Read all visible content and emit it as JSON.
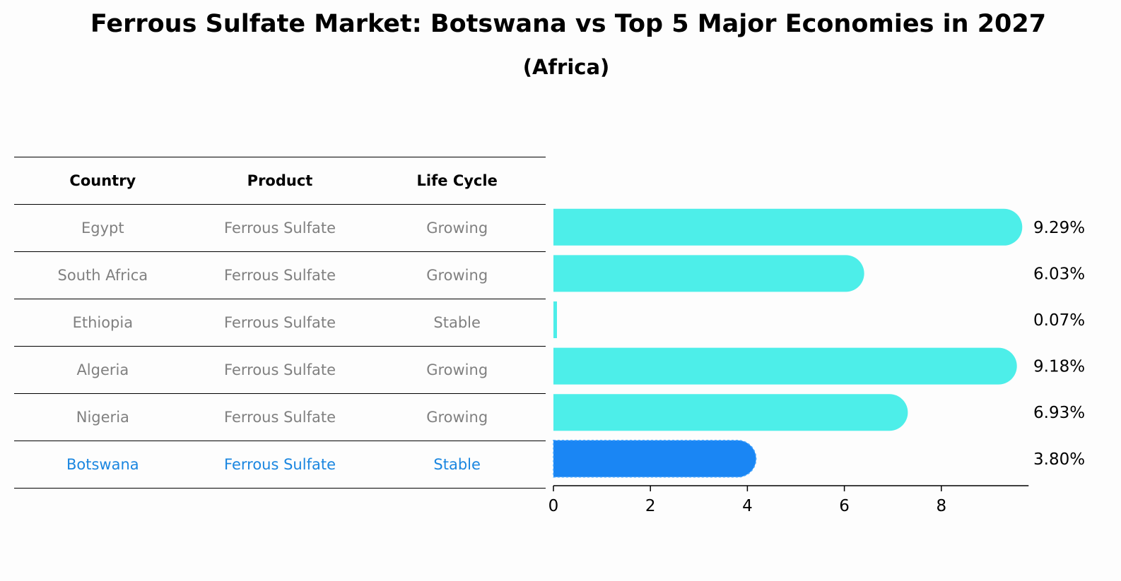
{
  "title": "Ferrous Sulfate Market: Botswana vs Top 5 Major Economies in 2027",
  "subtitle": "(Africa)",
  "table": {
    "headers": [
      "Country",
      "Product",
      "Life Cycle"
    ],
    "rows": [
      [
        "Egypt",
        "Ferrous Sulfate",
        "Growing"
      ],
      [
        "South Africa",
        "Ferrous Sulfate",
        "Growing"
      ],
      [
        "Ethiopia",
        "Ferrous Sulfate",
        "Stable"
      ],
      [
        "Algeria",
        "Ferrous Sulfate",
        "Growing"
      ],
      [
        "Nigeria",
        "Ferrous Sulfate",
        "Growing"
      ],
      [
        "Botswana",
        "Ferrous Sulfate",
        "Stable"
      ]
    ],
    "highlight_row": 5
  },
  "chart_data": {
    "type": "bar",
    "orientation": "horizontal",
    "categories": [
      "Egypt",
      "South Africa",
      "Ethiopia",
      "Algeria",
      "Nigeria",
      "Botswana"
    ],
    "values": [
      9.29,
      6.03,
      0.07,
      9.18,
      6.93,
      3.8
    ],
    "value_labels": [
      "9.29%",
      "6.03%",
      "0.07%",
      "9.18%",
      "6.93%",
      "3.80%"
    ],
    "xticks": [
      0,
      2,
      4,
      6,
      8
    ],
    "xlim": [
      0,
      9.8
    ],
    "highlight_category": "Botswana",
    "colors": {
      "default": "#4deee9",
      "highlight": "#1a86f4",
      "highlight_text": "#1a86e0"
    },
    "grid": false
  }
}
